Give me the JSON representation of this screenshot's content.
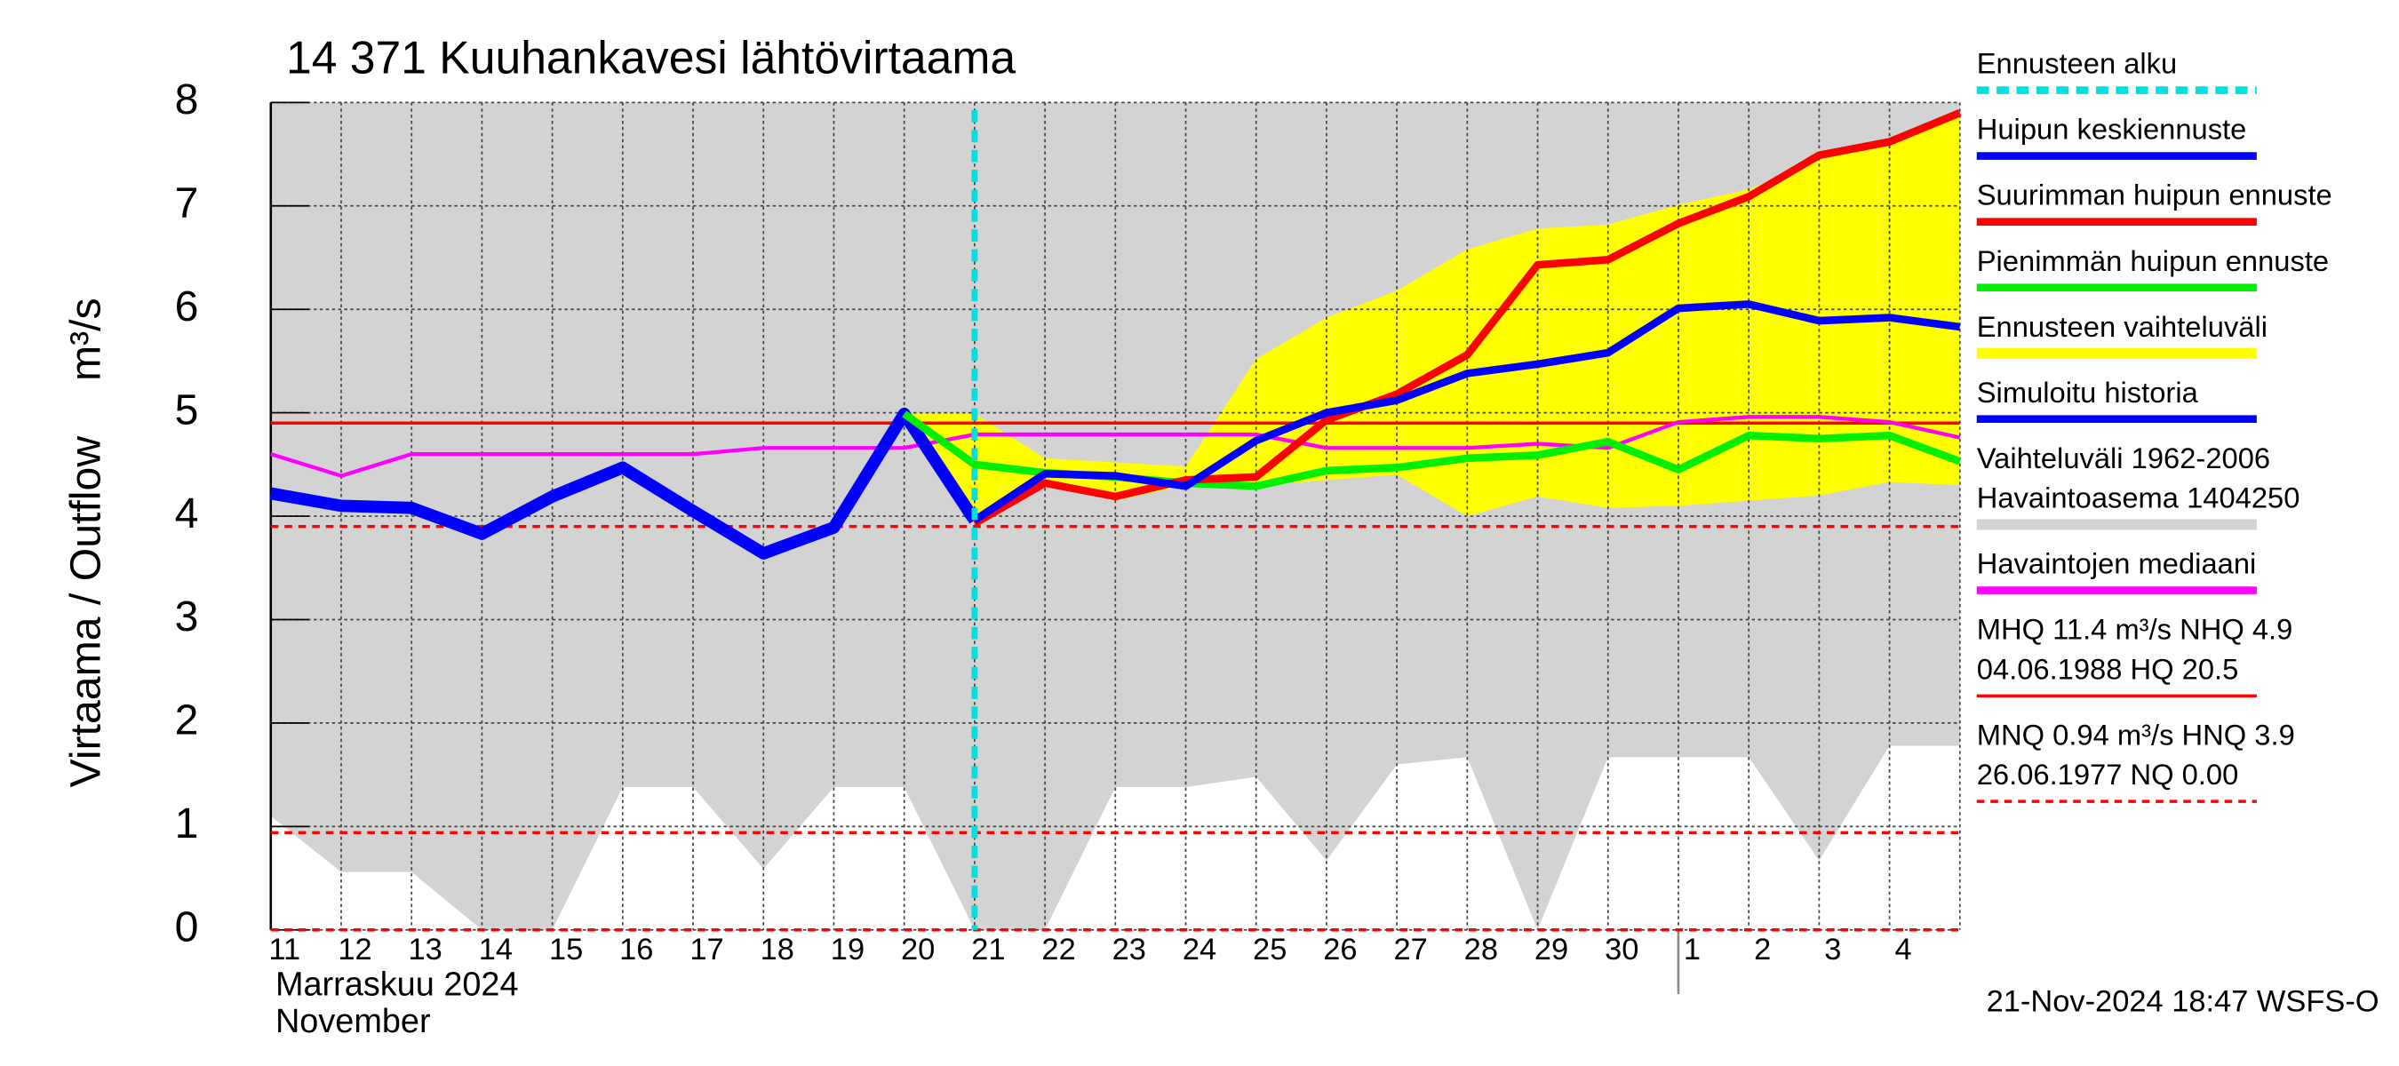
{
  "chart_data": {
    "type": "line",
    "title": "14 371 Kuuhankavesi lähtövirtaama",
    "y_label": "Virtaama / Outflow",
    "y_unit": "m³/s",
    "x_month_fi": "Marraskuu 2024",
    "x_month_en": "November",
    "timestamp": "21-Nov-2024 18:47 WSFS-O",
    "categories": [
      "11",
      "12",
      "13",
      "14",
      "15",
      "16",
      "17",
      "18",
      "19",
      "20",
      "21",
      "22",
      "23",
      "24",
      "25",
      "26",
      "27",
      "28",
      "29",
      "30",
      "1",
      "2",
      "3",
      "4",
      null
    ],
    "ylim": [
      0,
      8
    ],
    "yticks": [
      0,
      1,
      2,
      3,
      4,
      5,
      6,
      7,
      8
    ],
    "grid": true,
    "forecast_start": {
      "name": "Ennusteen alku",
      "color": "#00e0e0",
      "category_index": 10
    },
    "series": [
      {
        "name": "Huipun keskiennuste",
        "color": "#0000ff",
        "kind": "line",
        "width": 5,
        "values": [
          null,
          null,
          null,
          null,
          null,
          null,
          null,
          null,
          null,
          null,
          3.96,
          4.41,
          4.39,
          4.29,
          4.73,
          5.0,
          5.12,
          5.38,
          5.47,
          5.58,
          6.01,
          6.05,
          5.89,
          5.92,
          5.83
        ]
      },
      {
        "name": "Suurimman huipun ennuste",
        "color": "#ff0000",
        "kind": "line",
        "width": 5,
        "values": [
          null,
          null,
          null,
          null,
          null,
          null,
          null,
          null,
          null,
          null,
          3.93,
          4.32,
          4.19,
          4.35,
          4.38,
          4.93,
          5.18,
          5.56,
          6.43,
          6.48,
          6.83,
          7.09,
          7.49,
          7.62,
          7.9
        ]
      },
      {
        "name": "Pienimmän huipun ennuste",
        "color": "#00ee00",
        "kind": "line",
        "width": 5,
        "values": [
          null,
          null,
          null,
          null,
          null,
          null,
          null,
          null,
          null,
          4.99,
          4.5,
          4.42,
          4.38,
          4.32,
          4.29,
          4.44,
          4.47,
          4.56,
          4.59,
          4.72,
          4.45,
          4.78,
          4.75,
          4.78,
          4.53
        ]
      },
      {
        "name": "Ennusteen vaihteluväli",
        "color": "#ffff00",
        "kind": "band",
        "values": [
          null,
          null,
          null,
          null,
          null,
          null,
          null,
          null,
          null,
          4.99,
          4.99,
          4.56,
          4.52,
          4.48,
          5.52,
          5.92,
          6.18,
          6.58,
          6.78,
          6.82,
          7.01,
          7.16,
          7.44,
          7.66,
          7.93
        ],
        "low": [
          null,
          null,
          null,
          null,
          null,
          null,
          null,
          null,
          null,
          4.99,
          3.93,
          4.3,
          4.15,
          4.3,
          4.29,
          4.35,
          4.4,
          4.0,
          4.19,
          4.08,
          4.1,
          4.15,
          4.2,
          4.33,
          4.3
        ]
      },
      {
        "name": "Simuloitu historia",
        "color": "#0000ff",
        "kind": "line",
        "width": 8,
        "values": [
          4.22,
          4.1,
          4.08,
          3.83,
          4.19,
          4.47,
          4.05,
          3.64,
          3.89,
          4.99,
          3.96,
          null,
          null,
          null,
          null,
          null,
          null,
          null,
          null,
          null,
          null,
          null,
          null,
          null,
          null
        ]
      },
      {
        "name": [
          "Vaihteluväli 1962-2006",
          " Havaintoasema 1404250"
        ],
        "color": "#d3d3d3",
        "kind": "band",
        "values": [
          8,
          8,
          8,
          8,
          8,
          8,
          8,
          8,
          8,
          8,
          8,
          8,
          8,
          8,
          8,
          8,
          8,
          8,
          8,
          8,
          8,
          8,
          8,
          8,
          8
        ],
        "low": [
          1.1,
          0.56,
          0.56,
          0,
          0,
          1.38,
          1.38,
          0.59,
          1.38,
          1.38,
          0,
          0,
          1.38,
          1.38,
          1.48,
          0.67,
          1.6,
          1.67,
          0,
          1.67,
          1.67,
          1.67,
          0.67,
          1.78,
          1.78
        ]
      },
      {
        "name": "Havaintojen mediaani",
        "color": "#ff00ff",
        "kind": "line",
        "width": 2.5,
        "values": [
          4.6,
          4.39,
          4.6,
          4.6,
          4.6,
          4.6,
          4.6,
          4.66,
          4.66,
          4.66,
          4.79,
          4.79,
          4.79,
          4.79,
          4.79,
          4.66,
          4.66,
          4.66,
          4.7,
          4.66,
          4.91,
          4.96,
          4.96,
          4.91,
          4.76
        ]
      }
    ],
    "reference_stats": [
      {
        "lines": [
          "MHQ 11.4 m³/s NHQ  4.9",
          "04.06.1988 HQ 20.5"
        ],
        "color": "#ff0000",
        "dashed": false,
        "levels": [
          4.9
        ]
      },
      {
        "lines": [
          "MNQ 0.94 m³/s HNQ  3.9",
          "26.06.1977 NQ 0.00"
        ],
        "color": "#ff0000",
        "dashed": true,
        "levels": [
          3.9,
          0.94,
          0
        ]
      }
    ]
  }
}
